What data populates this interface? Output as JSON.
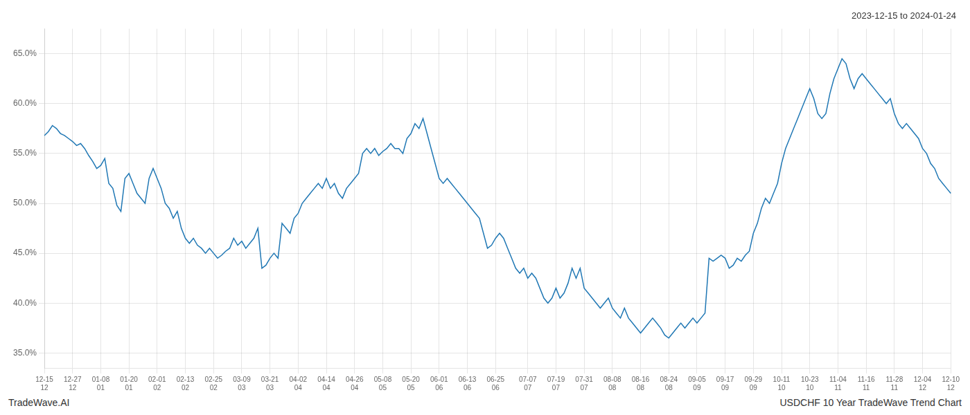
{
  "chart_data": {
    "type": "line",
    "title": "2023-12-15 to 2024-01-24",
    "annotations": [
      {
        "text": "TradeWave.AI"
      },
      {
        "text": "USDCHF 10 Year TradeWave Trend Chart"
      }
    ],
    "grid": true,
    "color": "#1f77b4",
    "ylim": [
      33.5,
      67.5
    ],
    "yticks": [
      {
        "value": 35,
        "label": "35.0%"
      },
      {
        "value": 40,
        "label": "40.0%"
      },
      {
        "value": 45,
        "label": "45.0%"
      },
      {
        "value": 50,
        "label": "50.0%"
      },
      {
        "value": 55,
        "label": "55.0%"
      },
      {
        "value": 60,
        "label": "60.0%"
      },
      {
        "value": 65,
        "label": "65.0%"
      }
    ],
    "categories": [
      "12-15\n12",
      null,
      null,
      null,
      null,
      null,
      null,
      "12-27\n12",
      null,
      null,
      null,
      null,
      null,
      null,
      "01-08\n01",
      null,
      null,
      null,
      null,
      null,
      null,
      "01-20\n01",
      null,
      null,
      null,
      null,
      null,
      null,
      "02-01\n02",
      null,
      null,
      null,
      null,
      null,
      null,
      "02-13\n02",
      null,
      null,
      null,
      null,
      null,
      null,
      "02-25\n02",
      null,
      null,
      null,
      null,
      null,
      null,
      "03-09\n03",
      null,
      null,
      null,
      null,
      null,
      null,
      "03-21\n03",
      null,
      null,
      null,
      null,
      null,
      null,
      "04-02\n04",
      null,
      null,
      null,
      null,
      null,
      null,
      "04-14\n04",
      null,
      null,
      null,
      null,
      null,
      null,
      "04-26\n04",
      null,
      null,
      null,
      null,
      null,
      null,
      "05-08\n05",
      null,
      null,
      null,
      null,
      null,
      null,
      "05-20\n05",
      null,
      null,
      null,
      null,
      null,
      null,
      "06-01\n06",
      null,
      null,
      null,
      null,
      null,
      null,
      "06-13\n06",
      null,
      null,
      null,
      null,
      null,
      null,
      "06-25\n06",
      null,
      null,
      null,
      null,
      null,
      null,
      null,
      "07-07\n07",
      null,
      null,
      null,
      null,
      null,
      null,
      "07-19\n07",
      null,
      null,
      null,
      null,
      null,
      null,
      "07-31\n07",
      null,
      null,
      null,
      null,
      null,
      null,
      "08-08\n08",
      null,
      null,
      null,
      null,
      null,
      null,
      "08-16\n08",
      null,
      null,
      null,
      null,
      null,
      null,
      "08-24\n08",
      null,
      null,
      null,
      null,
      null,
      null,
      "09-05\n09",
      null,
      null,
      null,
      null,
      null,
      null,
      "09-17\n09",
      null,
      null,
      null,
      null,
      null,
      null,
      "09-29\n09",
      null,
      null,
      null,
      null,
      null,
      null,
      "10-11\n10",
      null,
      null,
      null,
      null,
      null,
      null,
      "10-23\n10",
      null,
      null,
      null,
      null,
      null,
      null,
      "11-04\n11",
      null,
      null,
      null,
      null,
      null,
      null,
      "11-16\n11",
      null,
      null,
      null,
      null,
      null,
      null,
      "11-28\n11",
      null,
      null,
      null,
      null,
      null,
      null,
      "12-04\n12",
      null,
      null,
      null,
      null,
      null,
      null,
      "12-10\n12"
    ],
    "values": [
      56.8,
      57.2,
      57.8,
      57.5,
      57.0,
      56.8,
      56.5,
      56.2,
      55.8,
      56.0,
      55.5,
      54.8,
      54.2,
      53.5,
      53.8,
      54.5,
      52.0,
      51.5,
      49.8,
      49.2,
      52.5,
      53.0,
      52.0,
      51.0,
      50.5,
      50.0,
      52.5,
      53.5,
      52.5,
      51.5,
      50.0,
      49.5,
      48.5,
      49.2,
      47.5,
      46.5,
      46.0,
      46.5,
      45.8,
      45.5,
      45.0,
      45.5,
      45.0,
      44.5,
      44.8,
      45.2,
      45.5,
      46.5,
      45.8,
      46.2,
      45.5,
      46.0,
      46.5,
      47.5,
      43.5,
      43.8,
      44.5,
      45.0,
      44.5,
      48.0,
      47.5,
      47.0,
      48.5,
      49.0,
      50.0,
      50.5,
      51.0,
      51.5,
      52.0,
      51.5,
      52.5,
      51.5,
      52.0,
      51.0,
      50.5,
      51.5,
      52.0,
      52.5,
      53.0,
      55.0,
      55.5,
      55.0,
      55.5,
      54.8,
      55.2,
      55.5,
      56.0,
      55.5,
      55.5,
      55.0,
      56.5,
      57.0,
      58.0,
      57.5,
      58.5,
      57.0,
      55.5,
      54.0,
      52.5,
      52.0,
      52.5,
      52.0,
      51.5,
      51.0,
      50.5,
      50.0,
      49.5,
      49.0,
      48.5,
      47.0,
      45.5,
      45.8,
      46.5,
      47.0,
      46.5,
      45.5,
      44.5,
      43.5,
      43.0,
      43.5,
      42.5,
      43.0,
      42.5,
      41.5,
      40.5,
      40.0,
      40.5,
      41.5,
      40.5,
      41.0,
      42.0,
      43.5,
      42.5,
      43.5,
      41.5,
      41.0,
      40.5,
      40.0,
      39.5,
      40.0,
      40.5,
      39.5,
      39.0,
      38.5,
      39.5,
      38.5,
      38.0,
      37.5,
      37.0,
      37.5,
      38.0,
      38.5,
      38.0,
      37.5,
      36.8,
      36.5,
      37.0,
      37.5,
      38.0,
      37.5,
      38.0,
      38.5,
      38.0,
      38.5,
      39.0,
      44.5,
      44.2,
      44.5,
      44.8,
      44.5,
      43.5,
      43.8,
      44.5,
      44.2,
      44.8,
      45.2,
      47.0,
      48.0,
      49.5,
      50.5,
      50.0,
      51.0,
      52.0,
      54.0,
      55.5,
      56.5,
      57.5,
      58.5,
      59.5,
      60.5,
      61.5,
      60.5,
      59.0,
      58.5,
      59.0,
      61.0,
      62.5,
      63.5,
      64.5,
      64.0,
      62.5,
      61.5,
      62.5,
      63.0,
      62.5,
      62.0,
      61.5,
      61.0,
      60.5,
      60.0,
      60.5,
      59.0,
      58.0,
      57.5,
      58.0,
      57.5,
      57.0,
      56.5,
      55.5,
      55.0,
      54.0,
      53.5,
      52.5,
      52.0,
      51.5,
      51.0
    ]
  }
}
